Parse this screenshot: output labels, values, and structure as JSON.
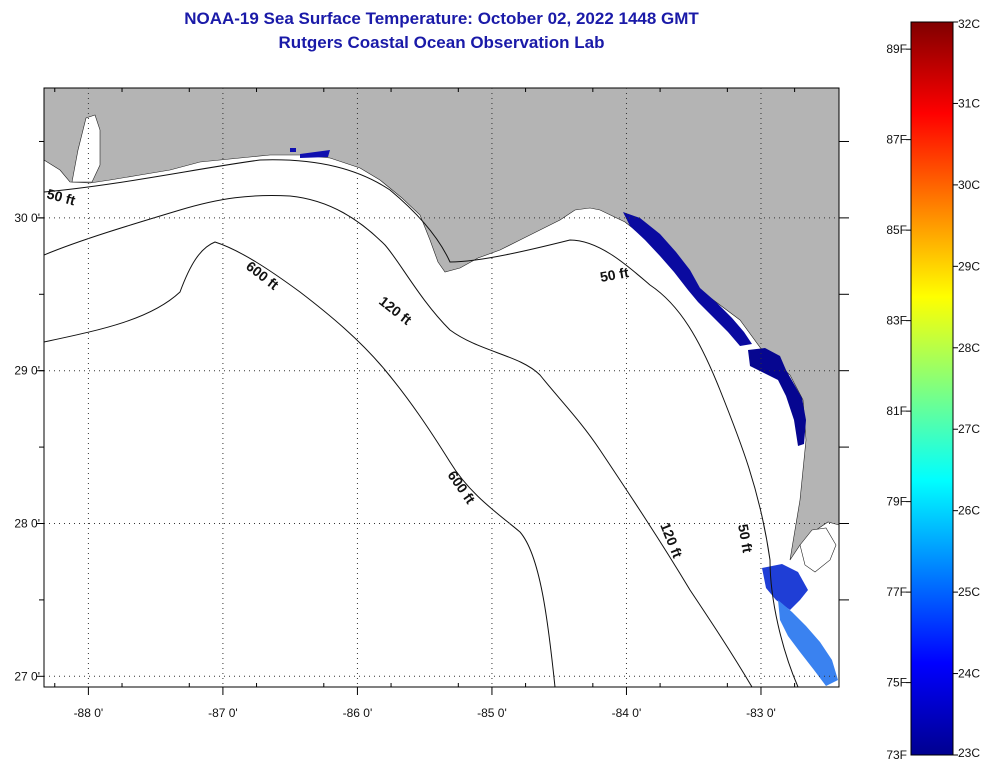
{
  "header": {
    "title": "NOAA-19 Sea Surface Temperature:  October 02, 2022 1448 GMT",
    "subtitle": "Rutgers Coastal Ocean Observation Lab"
  },
  "map": {
    "lon_range": [
      -88.33,
      -82.42
    ],
    "lat_range": [
      26.93,
      30.85
    ],
    "lon_ticks": [
      {
        "value": -88,
        "label": "-88 0'"
      },
      {
        "value": -87,
        "label": "-87 0'"
      },
      {
        "value": -86,
        "label": "-86 0'"
      },
      {
        "value": -85,
        "label": "-85 0'"
      },
      {
        "value": -84,
        "label": "-84 0'"
      },
      {
        "value": -83,
        "label": "-83 0'"
      }
    ],
    "lat_ticks": [
      {
        "value": 30,
        "label": "30 0'"
      },
      {
        "value": 29,
        "label": "29 0'"
      },
      {
        "value": 28,
        "label": "28 0'"
      },
      {
        "value": 27,
        "label": "27 0'"
      }
    ],
    "depth_labels": [
      "50 ft",
      "600 ft",
      "120 ft",
      "50 ft",
      "600 ft",
      "120 ft",
      "50 ft"
    ],
    "colors": {
      "land": "#b4b4b4",
      "water": "#ffffff",
      "sst_dark": "#00008c",
      "sst_mid": "#1e3cd2",
      "sst_light": "#3c8cf0"
    }
  },
  "colorbar": {
    "fahrenheit": [
      "89F",
      "87F",
      "85F",
      "83F",
      "81F",
      "79F",
      "77F",
      "75F",
      "73F"
    ],
    "celsius": [
      "32C",
      "31C",
      "30C",
      "29C",
      "28C",
      "27C",
      "26C",
      "25C",
      "24C",
      "23C"
    ]
  }
}
